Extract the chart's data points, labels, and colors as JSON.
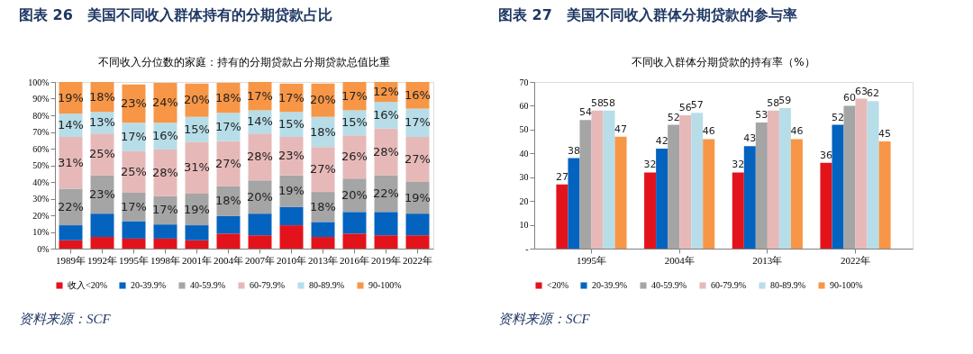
{
  "chart_data": [
    {
      "type": "bar",
      "stacked": true,
      "title": "图表 26　美国不同收入群体持有的分期贷款占比",
      "subtitle": "不同收入分位数的家庭：持有的分期贷款占分期贷款总值比重",
      "annotations": [
        "资料来源：SCF"
      ],
      "categories": [
        "1989年",
        "1992年",
        "1995年",
        "1998年",
        "2001年",
        "2004年",
        "2007年",
        "2010年",
        "2013年",
        "2016年",
        "2019年",
        "2022年"
      ],
      "ylim": [
        0,
        100
      ],
      "yticks": [
        {
          "value": 0,
          "label": "0%"
        },
        {
          "value": 10,
          "label": "10%"
        },
        {
          "value": 20,
          "label": "20%"
        },
        {
          "value": 30,
          "label": "30%"
        },
        {
          "value": 40,
          "label": "40%"
        },
        {
          "value": 50,
          "label": "50%"
        },
        {
          "value": 60,
          "label": "60%"
        },
        {
          "value": 70,
          "label": "70%"
        },
        {
          "value": 80,
          "label": "80%"
        },
        {
          "value": 90,
          "label": "90%"
        },
        {
          "value": 100,
          "label": "100%"
        }
      ],
      "grid": false,
      "legend": "bottom",
      "series": [
        {
          "name": "收入<20%",
          "color": "#e3131b",
          "values": [
            5,
            7,
            6,
            6,
            5,
            9,
            8,
            14,
            7,
            9,
            8,
            8
          ]
        },
        {
          "name": "20-39.9%",
          "color": "#0563c0",
          "values": [
            9,
            14,
            10.5,
            8.5,
            9,
            10.5,
            13,
            11,
            9,
            13,
            14,
            13
          ]
        },
        {
          "name": "40-59.9%",
          "color": "#a5a5a5",
          "values": [
            22,
            23,
            17,
            17,
            19,
            18,
            20,
            19,
            18,
            20,
            22,
            19
          ],
          "value_labels": [
            "22%",
            "23%",
            "17%",
            "17%",
            "19%",
            "18%",
            "20%",
            "19%",
            "18%",
            "20%",
            "22%",
            "19%"
          ]
        },
        {
          "name": "60-79.9%",
          "color": "#e6b9b8",
          "values": [
            31,
            25,
            25,
            28,
            31,
            27,
            28,
            23,
            27,
            26,
            28,
            27
          ],
          "value_labels": [
            "31%",
            "25%",
            "25%",
            "28%",
            "31%",
            "27%",
            "28%",
            "23%",
            "27%",
            "26%",
            "28%",
            "27%"
          ]
        },
        {
          "name": "80-89.9%",
          "color": "#b7dde8",
          "values": [
            14,
            13,
            17,
            16,
            15,
            17,
            14,
            15,
            18,
            15,
            16,
            17
          ],
          "value_labels": [
            "14%",
            "13%",
            "17%",
            "16%",
            "15%",
            "17%",
            "14%",
            "15%",
            "18%",
            "15%",
            "16%",
            "17%"
          ]
        },
        {
          "name": "90-100%",
          "color": "#f79646",
          "values": [
            19,
            18,
            23,
            24,
            20,
            18,
            17,
            17,
            20,
            17,
            12,
            16
          ],
          "value_labels": [
            "19%",
            "18%",
            "23%",
            "24%",
            "20%",
            "18%",
            "17%",
            "17%",
            "20%",
            "17%",
            "12%",
            "16%"
          ]
        }
      ]
    },
    {
      "type": "bar",
      "title": "图表 27　美国不同收入群体分期贷款的参与率",
      "subtitle": "不同收入群体分期贷款的持有率（%）",
      "annotations": [
        "资料来源：SCF"
      ],
      "categories": [
        "1995年",
        "2004年",
        "2013年",
        "2022年"
      ],
      "ylim": [
        0,
        70
      ],
      "yticks": [
        {
          "value": 0,
          "label": "-"
        },
        10,
        20,
        30,
        40,
        50,
        60,
        70
      ],
      "grid": false,
      "legend": "bottom",
      "data_labels": true,
      "series": [
        {
          "name": "<20%",
          "color": "#e3131b",
          "values": [
            27,
            32,
            32,
            36
          ]
        },
        {
          "name": "20-39.9%",
          "color": "#0563c0",
          "values": [
            38,
            42,
            43,
            52
          ]
        },
        {
          "name": "40-59.9%",
          "color": "#a5a5a5",
          "values": [
            54,
            52,
            53,
            60
          ]
        },
        {
          "name": "60-79.9%",
          "color": "#e6b9b8",
          "values": [
            58,
            56,
            58,
            63
          ]
        },
        {
          "name": "80-89.9%",
          "color": "#b7dde8",
          "values": [
            58,
            57,
            59,
            62
          ]
        },
        {
          "name": "90-100%",
          "color": "#f79646",
          "values": [
            47,
            46,
            46,
            45
          ]
        }
      ]
    }
  ]
}
